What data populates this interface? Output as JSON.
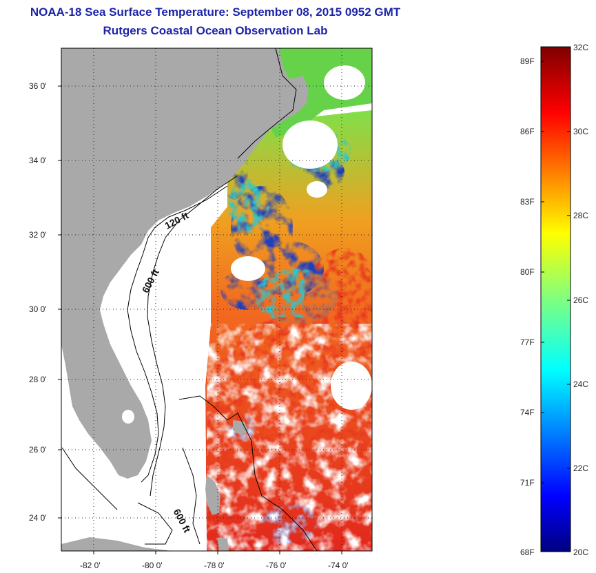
{
  "title": {
    "line1": "NOAA-18 Sea Surface Temperature:  September 08, 2015 0952 GMT",
    "line2": "Rutgers Coastal Ocean Observation Lab"
  },
  "map": {
    "lon_range": [
      -83.0,
      -73.0
    ],
    "lat_range": [
      23.0,
      37.0
    ],
    "lon_ticks": [
      "-82 0'",
      "-80 0'",
      "-78 0'",
      "-76 0'",
      "-74 0'"
    ],
    "lat_ticks": [
      "36 0'",
      "34 0'",
      "32 0'",
      "30 0'",
      "28 0'",
      "26 0'",
      "24 0'"
    ],
    "contour_labels": [
      "120 ft",
      "600 ft",
      "600 ft"
    ],
    "colors": {
      "land": "#a9a9a9",
      "cloud": "#ffffff",
      "warm": "#e8381e",
      "cool": "#1f3fbf"
    }
  },
  "colorbar": {
    "min_c": 20,
    "max_c": 32,
    "celsius_labels": [
      "32C",
      "30C",
      "28C",
      "26C",
      "24C",
      "22C",
      "20C"
    ],
    "fahrenheit_labels": [
      "89F",
      "86F",
      "83F",
      "80F",
      "77F",
      "74F",
      "71F",
      "68F"
    ]
  }
}
